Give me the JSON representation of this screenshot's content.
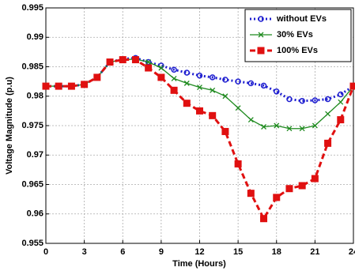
{
  "chart_data": {
    "type": "line",
    "x_label": "Time (Hours)",
    "y_label": "Voltage Magnitude (p.u)",
    "x": [
      0,
      1,
      2,
      3,
      4,
      5,
      6,
      7,
      8,
      9,
      10,
      11,
      12,
      13,
      14,
      15,
      16,
      17,
      18,
      19,
      20,
      21,
      22,
      23,
      24
    ],
    "series": [
      {
        "name": "without EVs",
        "color": "#1f1fd0",
        "dash": "dotted",
        "marker": "circle",
        "values": [
          0.9817,
          0.9817,
          0.9817,
          0.982,
          0.9832,
          0.9858,
          0.9863,
          0.9865,
          0.9858,
          0.9852,
          0.9845,
          0.984,
          0.9835,
          0.9832,
          0.9828,
          0.9825,
          0.9822,
          0.9818,
          0.9808,
          0.9795,
          0.9792,
          0.9793,
          0.9795,
          0.9803,
          0.9817
        ]
      },
      {
        "name": "30% EVs",
        "color": "#1e8a1e",
        "dash": "solid",
        "marker": "x",
        "values": [
          0.9817,
          0.9817,
          0.9817,
          0.982,
          0.9832,
          0.9858,
          0.9862,
          0.9863,
          0.9858,
          0.9848,
          0.983,
          0.9822,
          0.9815,
          0.981,
          0.98,
          0.978,
          0.976,
          0.9748,
          0.975,
          0.9745,
          0.9745,
          0.975,
          0.977,
          0.979,
          0.9817
        ]
      },
      {
        "name": "100% EVs",
        "color": "#e01010",
        "dash": "dashed",
        "marker": "square",
        "values": [
          0.9817,
          0.9817,
          0.9817,
          0.982,
          0.9832,
          0.9858,
          0.9862,
          0.9862,
          0.9848,
          0.9832,
          0.981,
          0.9788,
          0.9775,
          0.9767,
          0.974,
          0.9685,
          0.9635,
          0.9592,
          0.9628,
          0.9643,
          0.9648,
          0.966,
          0.972,
          0.976,
          0.9817
        ]
      }
    ],
    "xlim": [
      0,
      24
    ],
    "xticks": [
      0,
      3,
      6,
      9,
      12,
      15,
      18,
      21,
      24
    ],
    "ylim": [
      0.955,
      0.995
    ],
    "yticks": [
      0.955,
      0.96,
      0.965,
      0.97,
      0.975,
      0.98,
      0.985,
      0.99,
      0.995
    ],
    "grid": true,
    "legend": "upper right"
  }
}
